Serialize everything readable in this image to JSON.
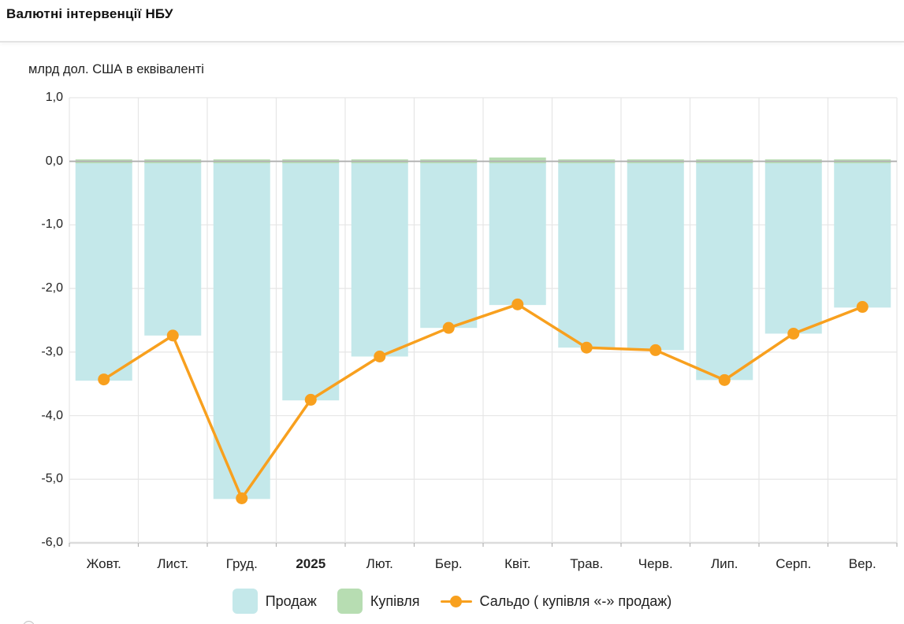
{
  "header": {
    "title": "Валютні інтервенції НБУ"
  },
  "chart_data": {
    "type": "bar",
    "subtype": "bar-with-line-overlay",
    "unit_label": "млрд дол. США в еквіваленті",
    "categories": [
      "Жовт.",
      "Лист.",
      "Груд.",
      "2025",
      "Лют.",
      "Бер.",
      "Квіт.",
      "Трав.",
      "Черв.",
      "Лип.",
      "Серп.",
      "Вер."
    ],
    "bold_category": "2025",
    "series": [
      {
        "name": "Продаж",
        "type": "bar",
        "color": "#c4e8ea",
        "values": [
          -3.45,
          -2.74,
          -5.31,
          -3.76,
          -3.07,
          -2.62,
          -2.26,
          -2.93,
          -2.97,
          -3.44,
          -2.71,
          -2.3
        ]
      },
      {
        "name": "Купівля",
        "type": "bar",
        "color": "#b7ddb2",
        "values": [
          0.03,
          0.03,
          0.03,
          0.03,
          0.03,
          0.03,
          0.06,
          0.03,
          0.03,
          0.03,
          0.03,
          0.03
        ]
      },
      {
        "name": "Сальдо ( купівля «-» продаж)",
        "type": "line",
        "color": "#f8a01e",
        "values": [
          -3.43,
          -2.74,
          -5.3,
          -3.75,
          -3.07,
          -2.62,
          -2.25,
          -2.93,
          -2.97,
          -3.44,
          -2.71,
          -2.29
        ]
      }
    ],
    "y_ticks": [
      {
        "value": 1,
        "label": "1,0"
      },
      {
        "value": 0,
        "label": "0,0"
      },
      {
        "value": -1,
        "label": "-1,0"
      },
      {
        "value": -2,
        "label": "-2,0"
      },
      {
        "value": -3,
        "label": "-3,0"
      },
      {
        "value": -4,
        "label": "-4,0"
      },
      {
        "value": -5,
        "label": "-5,0"
      },
      {
        "value": -6,
        "label": "-6,0"
      }
    ],
    "ylim": [
      -6.0,
      1.0
    ],
    "grid": true,
    "legend_position": "bottom"
  },
  "legend": {
    "items": [
      {
        "label": "Продаж",
        "color": "#c4e8ea",
        "marker": "square"
      },
      {
        "label": "Купівля",
        "color": "#b7ddb2",
        "marker": "square"
      },
      {
        "label": "Сальдо ( купівля «-» продаж)",
        "color": "#f8a01e",
        "marker": "line-dot"
      }
    ]
  },
  "colors": {
    "grid_line": "#e6e6e6",
    "zero_line": "#b3b3b3",
    "axis_line": "#dcdcdc",
    "text": "#212121"
  }
}
